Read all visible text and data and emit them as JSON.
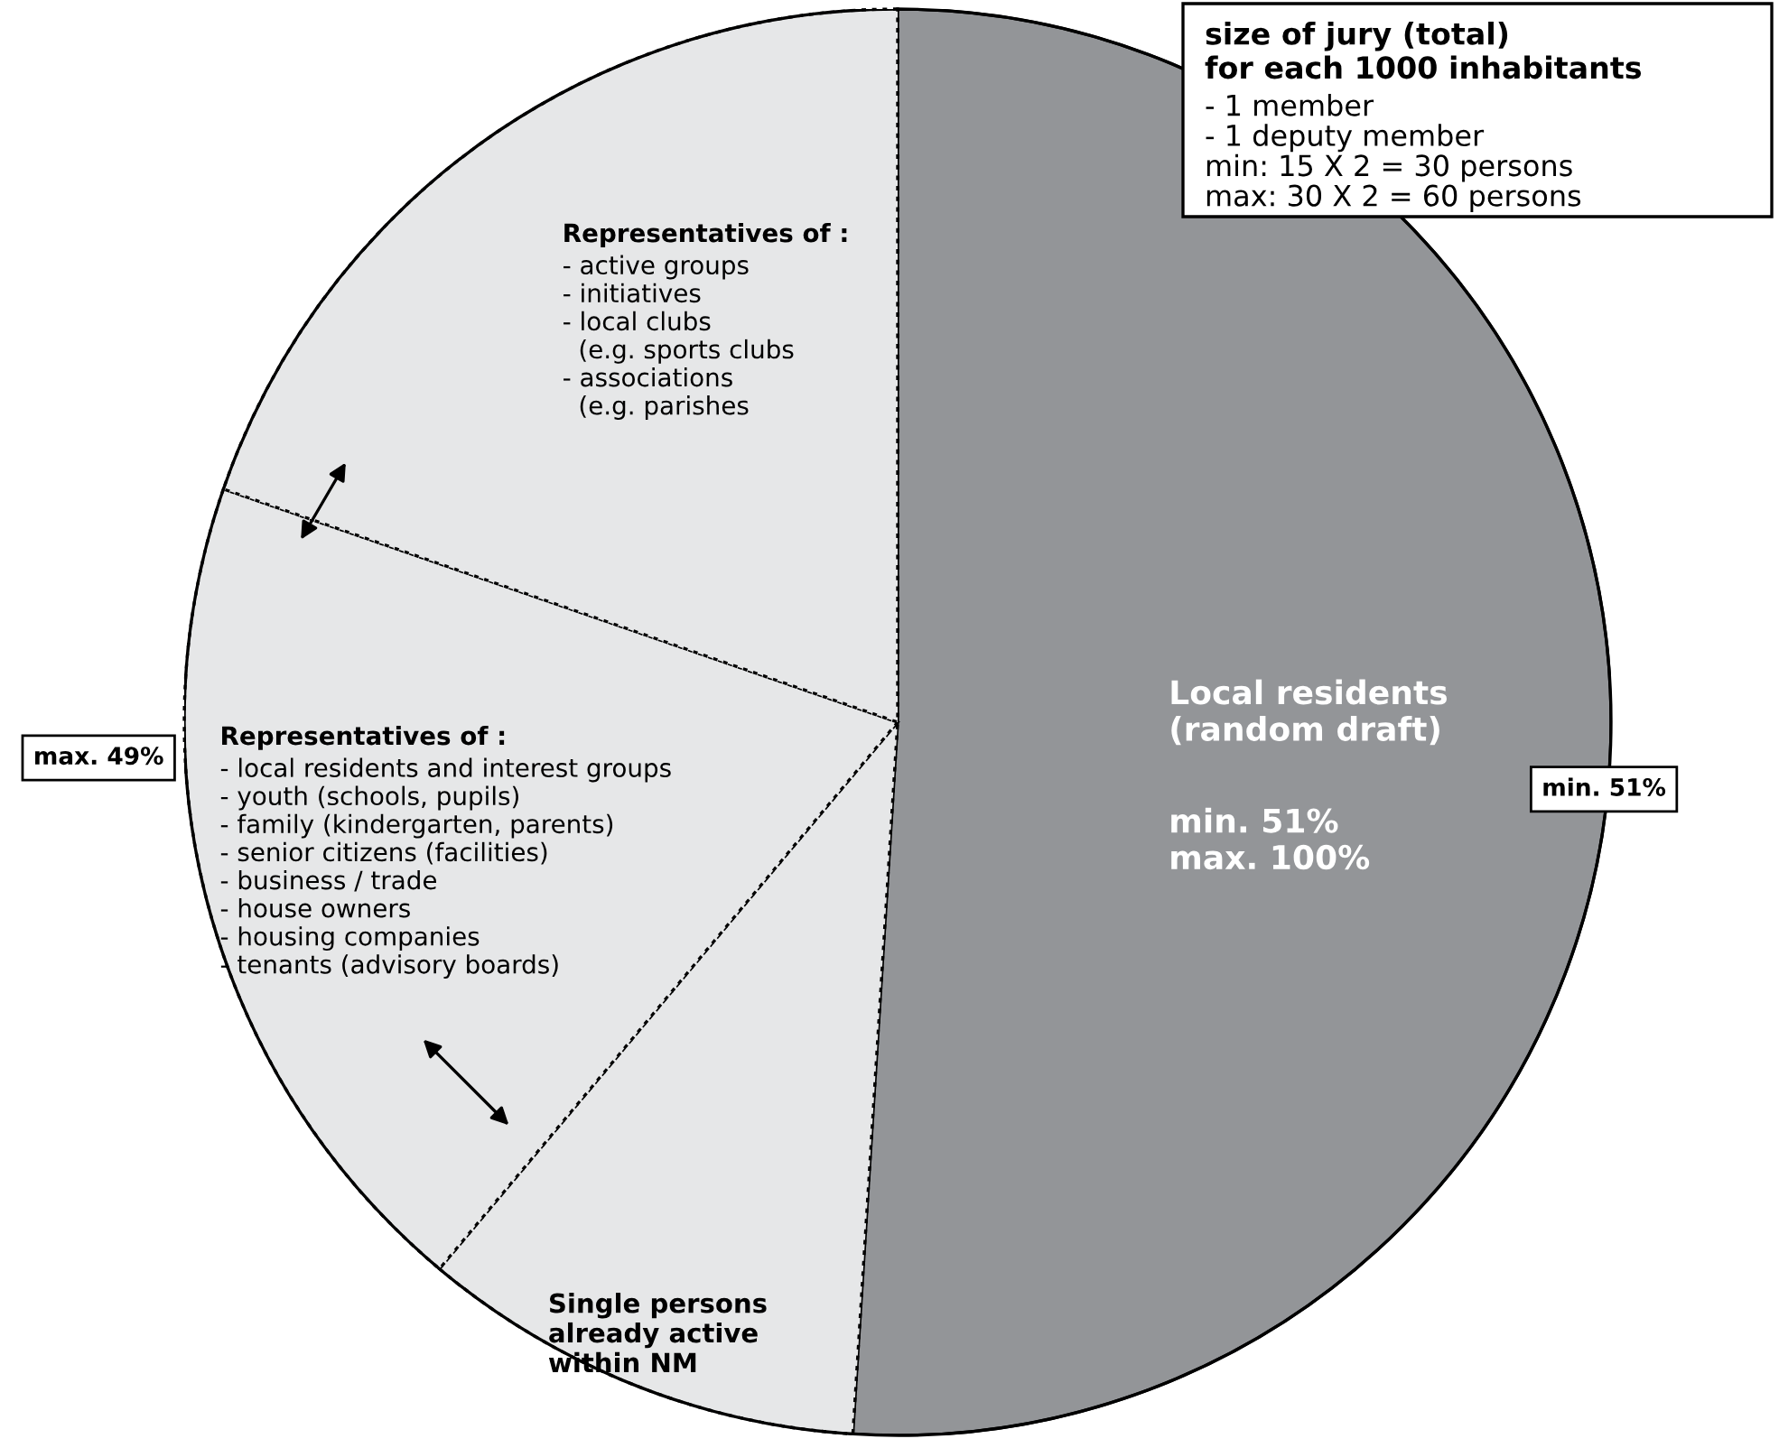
{
  "chart_data": {
    "type": "pie",
    "categories": [
      "Local residents\n(random draft)",
      "Single persons\nalready active\nwithin NM",
      null,
      null
    ],
    "values": [
      51,
      10.1,
      19.2,
      19.7
    ],
    "colors": [
      "#939598",
      "#e6e7e8",
      "#e6e7e8",
      "#e6e7e8"
    ],
    "annotations": [
      "min. 51%\nmax. 100%",
      "- local residents and interest groups\n- youth (schools, pupils)\n- family (kindergarten, parents)\n- senior citizens (facilities)\n- business / trade\n- house owners\n- housing companies\n- tenants (advisory boards)",
      "- active groups\n- initiatives\n- local clubs\n  (e.g. sports clubs\n- associations\n  (e.g. parishes",
      "max. 49%",
      "min. 51%",
      "size of jury (total)\nfor each 1000 inhabitants",
      "- 1 member\n- 1 deputy member\nmin: 15 X 2 = 30 persons\nmax: 30 X 2 = 60 persons",
      "Representatives of :",
      "Representatives of :"
    ]
  }
}
